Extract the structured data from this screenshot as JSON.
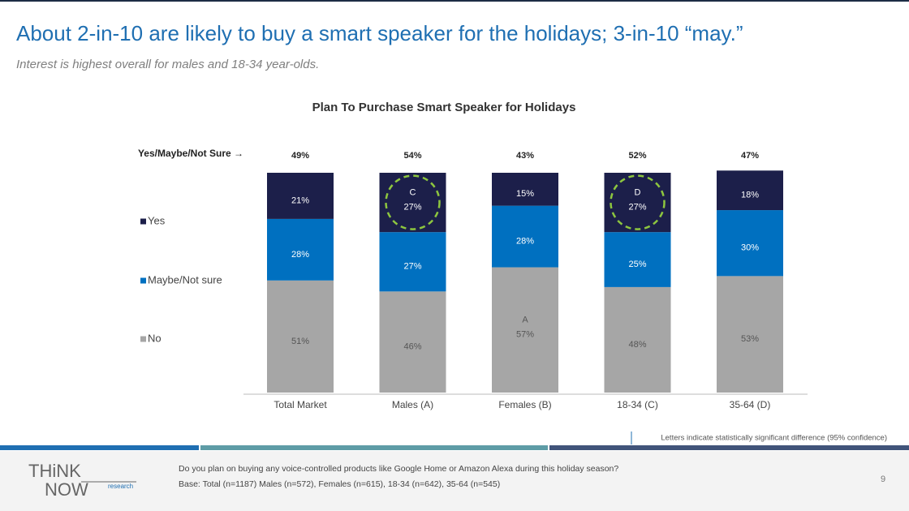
{
  "header": {
    "title": "About 2-in-10 are likely to buy a smart speaker for the holidays; 3-in-10 “may.”",
    "subtitle": "Interest is highest overall for males and 18-34 year-olds."
  },
  "chart_data": {
    "type": "stacked_bar",
    "title": "Plan To Purchase Smart Speaker for Holidays",
    "categories": [
      "Total Market",
      "Males (A)",
      "Females (B)",
      "18-34 (C)",
      "35-64 (D)"
    ],
    "series": [
      {
        "name": "No",
        "color": "#a6a6a6",
        "values": [
          51,
          46,
          57,
          48,
          53
        ],
        "value_labels": [
          "51%",
          "46%",
          "57%",
          "48%",
          "53%"
        ]
      },
      {
        "name": "Maybe/Not sure",
        "color": "#0070c0",
        "values": [
          28,
          27,
          28,
          25,
          30
        ],
        "value_labels": [
          "28%",
          "27%",
          "28%",
          "25%",
          "30%"
        ]
      },
      {
        "name": "Yes",
        "color": "#1c1f4a",
        "values": [
          21,
          27,
          15,
          27,
          18
        ],
        "value_labels": [
          "21%",
          "27%",
          "15%",
          "27%",
          "18%"
        ]
      }
    ],
    "totals": {
      "label": "Yes/Maybe/Not Sure →",
      "values": [
        49,
        54,
        43,
        52,
        47
      ],
      "value_labels": [
        "49%",
        "54%",
        "43%",
        "52%",
        "47%"
      ]
    },
    "annotations": [
      {
        "text": "C",
        "category": 1,
        "series": 2,
        "circled": true
      },
      {
        "text": "D",
        "category": 3,
        "series": 2,
        "circled": true
      },
      {
        "text": "A",
        "category": 2,
        "series": 0,
        "circled": false
      }
    ],
    "footnote": "Letters indicate statistically significant difference (95% confidence)"
  },
  "footer": {
    "question": "Do you plan on buying any voice-controlled products like Google Home or Amazon Alexa during this holiday season?",
    "base": "Base: Total (n=1187) Males (n=572), Females (n=615), 18-34 (n=642), 35-64 (n=545)",
    "page": "9",
    "logo_top": "THiNK",
    "logo_bottom": "NOW",
    "logo_sub": "research"
  }
}
